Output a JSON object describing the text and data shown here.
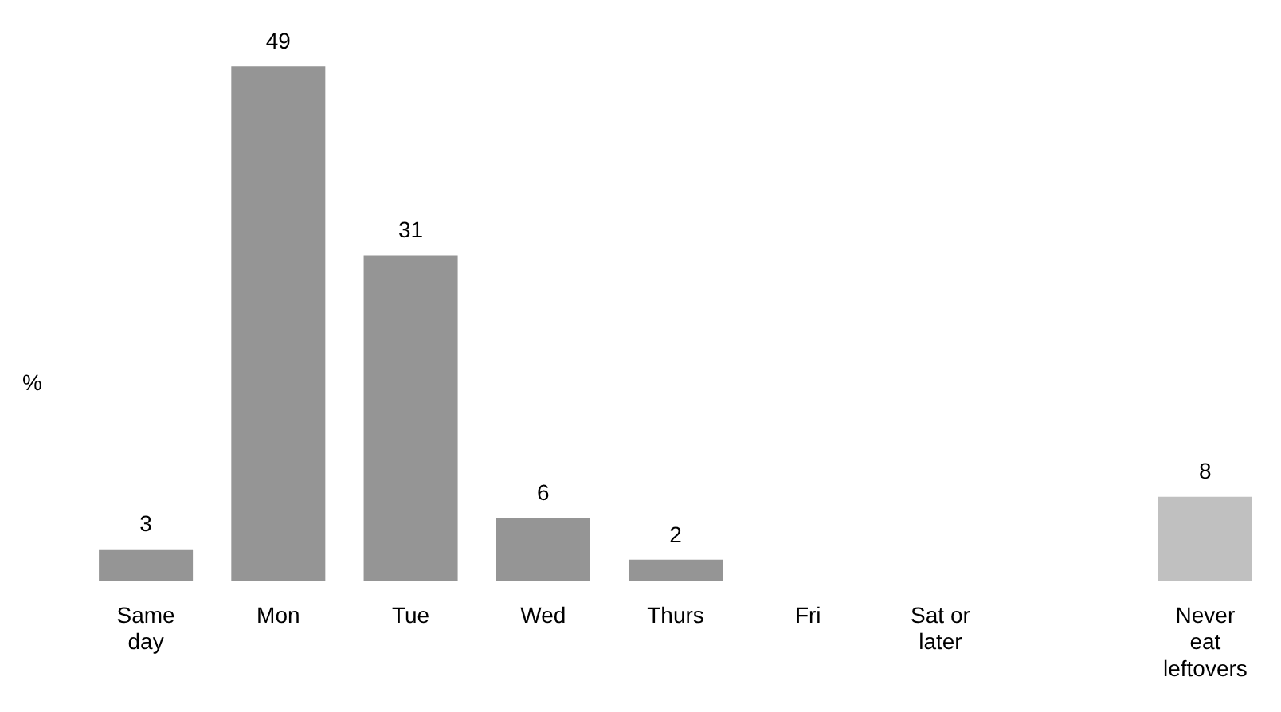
{
  "chart_data": {
    "type": "bar",
    "ylabel": "%",
    "categories": [
      "Same day",
      "Mon",
      "Tue",
      "Wed",
      "Thurs",
      "Fri",
      "Sat or later",
      null,
      "Never eat leftovers"
    ],
    "values": [
      3,
      49,
      31,
      6,
      2,
      null,
      null,
      null,
      8
    ],
    "colors": [
      "#959595",
      "#959595",
      "#959595",
      "#959595",
      "#959595",
      "#959595",
      "#959595",
      "#959595",
      "#c0c0c0"
    ],
    "data_labels": true,
    "grid": false,
    "legend": false
  }
}
